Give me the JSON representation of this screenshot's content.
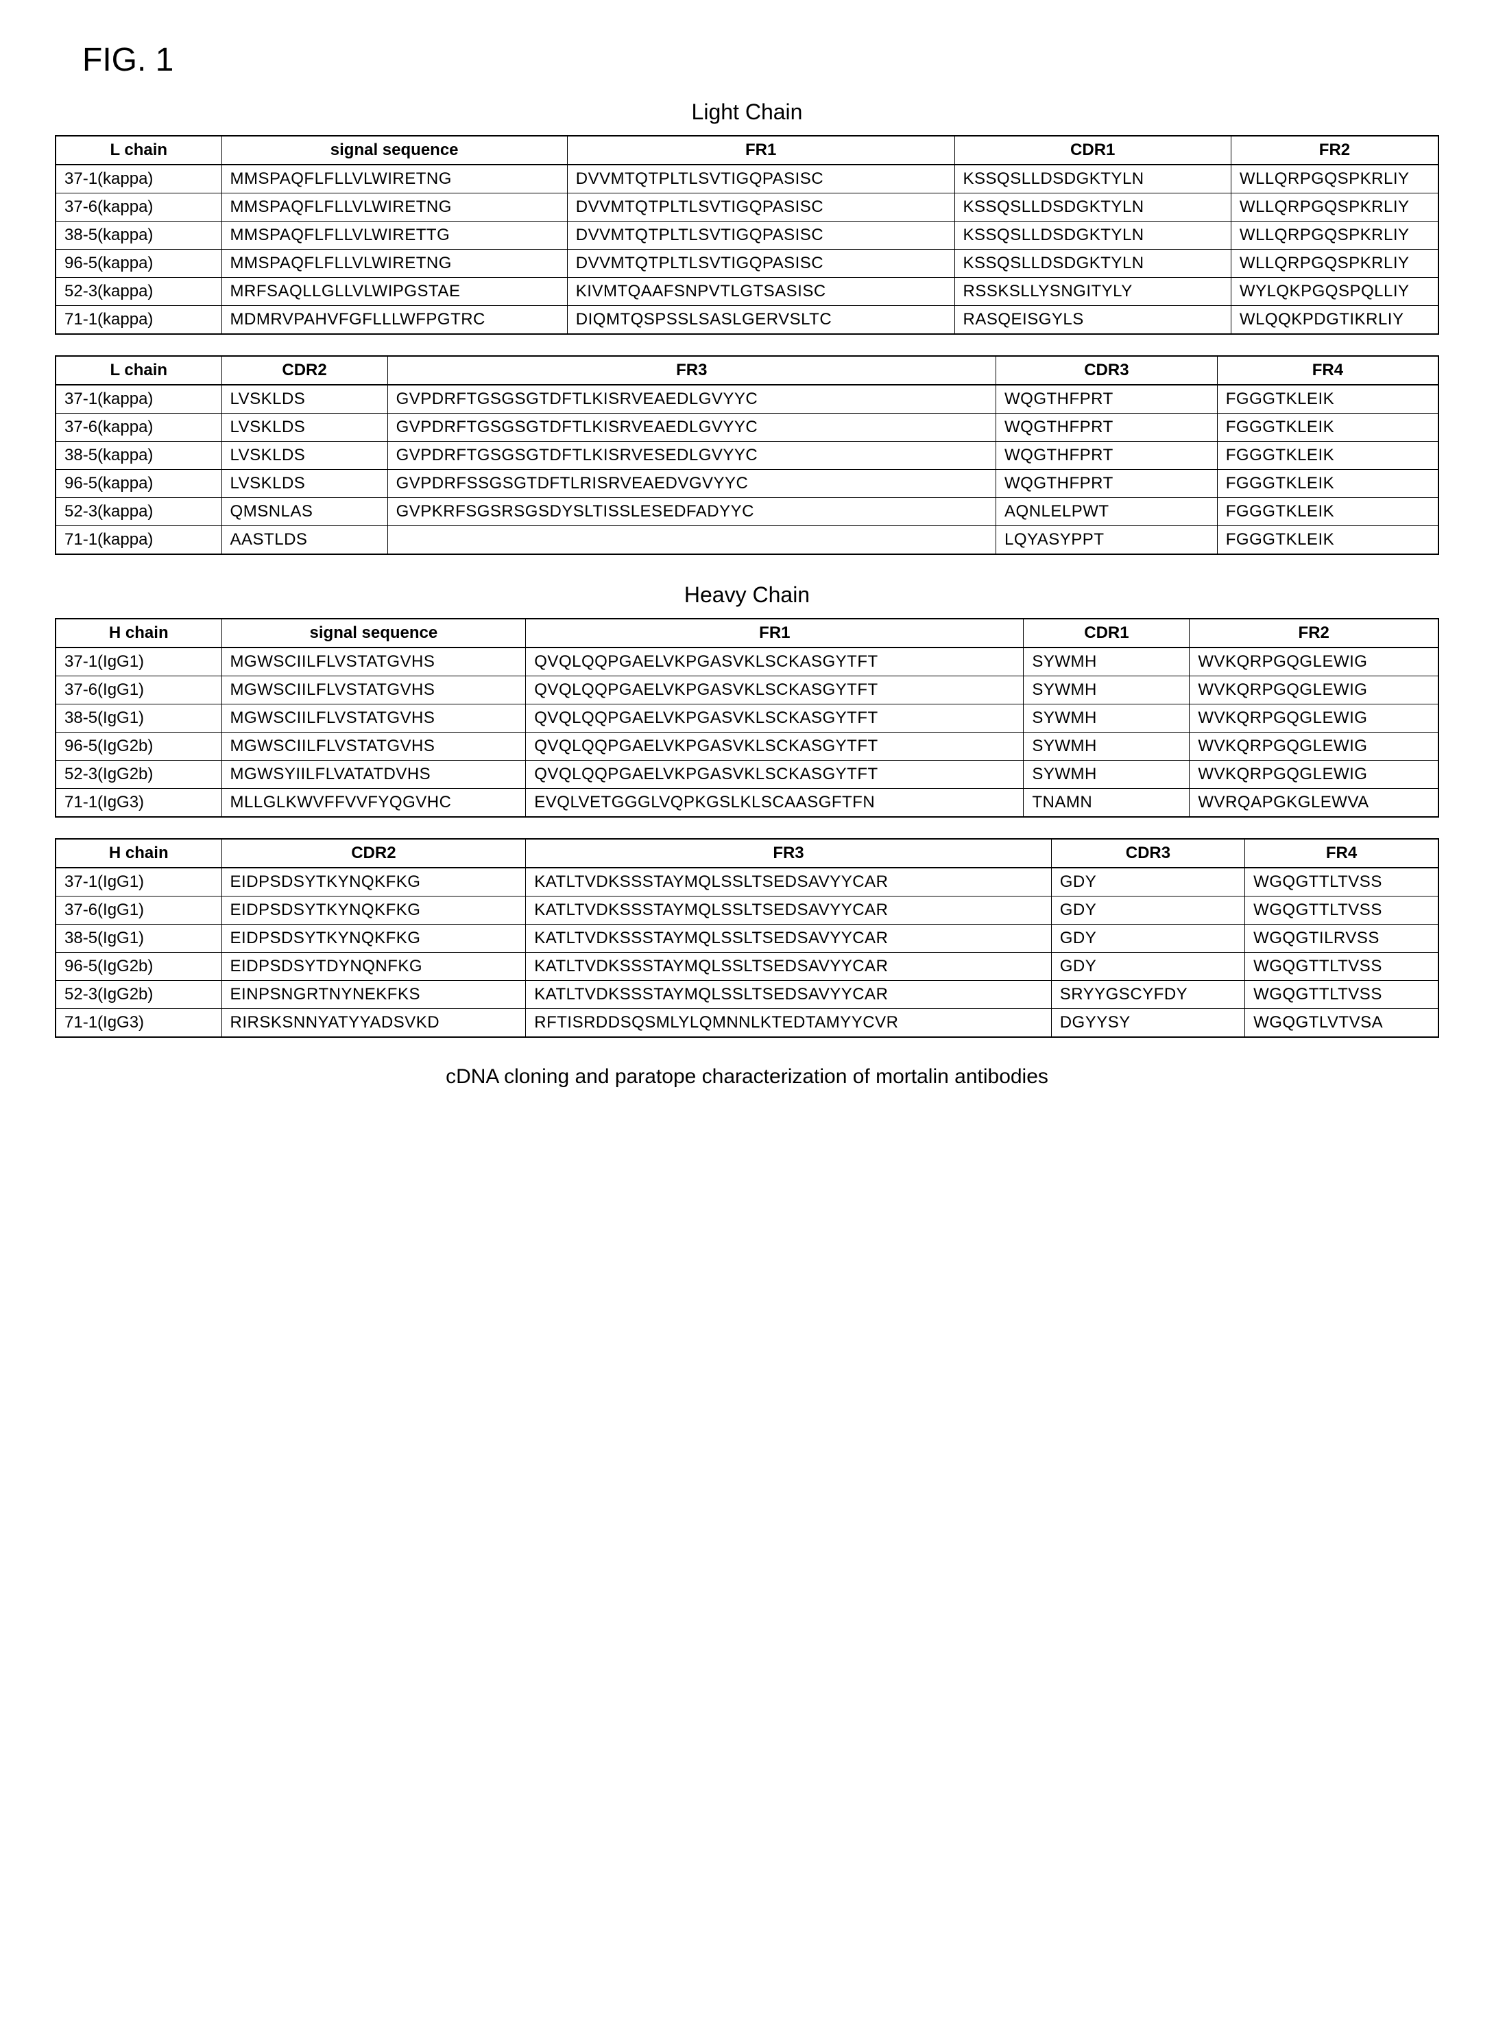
{
  "figure_label": "FIG. 1",
  "light_chain_title": "Light Chain",
  "heavy_chain_title": "Heavy Chain",
  "caption": "cDNA cloning and paratope characterization of mortalin antibodies",
  "light_table1": {
    "headers": [
      "L chain",
      "signal sequence",
      "FR1",
      "CDR1",
      "FR2"
    ],
    "rows": [
      [
        "37-1(kappa)",
        "MMSPAQFLFLLVLWIRETNG",
        "DVVMTQTPLTLSVTIGQPASISC",
        "KSSQSLLDSDGKTYLN",
        "WLLQRPGQSPKRLIY"
      ],
      [
        "37-6(kappa)",
        "MMSPAQFLFLLVLWIRETNG",
        "DVVMTQTPLTLSVTIGQPASISC",
        "KSSQSLLDSDGKTYLN",
        "WLLQRPGQSPKRLIY"
      ],
      [
        "38-5(kappa)",
        "MMSPAQFLFLLVLWIRETTG",
        "DVVMTQTPLTLSVTIGQPASISC",
        "KSSQSLLDSDGKTYLN",
        "WLLQRPGQSPKRLIY"
      ],
      [
        "96-5(kappa)",
        "MMSPAQFLFLLVLWIRETNG",
        "DVVMTQTPLTLSVTIGQPASISC",
        "KSSQSLLDSDGKTYLN",
        "WLLQRPGQSPKRLIY"
      ],
      [
        "52-3(kappa)",
        "MRFSAQLLGLLVLWIPGSTAE",
        "KIVMTQAAFSNPVTLGTSASISC",
        "RSSKSLLYSNGITYLY",
        "WYLQKPGQSPQLLIY"
      ],
      [
        "71-1(kappa)",
        "MDMRVPAHVFGFLLLWFPGTRC",
        "DIQMTQSPSSLSASLGERVSLTC",
        "RASQEISGYLS",
        "WLQQKPDGTIKRLIY"
      ]
    ]
  },
  "light_table2": {
    "headers": [
      "L chain",
      "CDR2",
      "FR3",
      "CDR3",
      "FR4"
    ],
    "rows": [
      [
        "37-1(kappa)",
        "LVSKLDS",
        "GVPDRFTGSGSGTDFTLKISRVEAEDLGVYYC",
        "WQGTHFPRT",
        "FGGGTKLEIK"
      ],
      [
        "37-6(kappa)",
        "LVSKLDS",
        "GVPDRFTGSGSGTDFTLKISRVEAEDLGVYYC",
        "WQGTHFPRT",
        "FGGGTKLEIK"
      ],
      [
        "38-5(kappa)",
        "LVSKLDS",
        "GVPDRFTGSGSGTDFTLKISRVESEDLGVYYC",
        "WQGTHFPRT",
        "FGGGTKLEIK"
      ],
      [
        "96-5(kappa)",
        "LVSKLDS",
        "GVPDRFSSGSGTDFTLRISRVEAEDVGVYYC",
        "WQGTHFPRT",
        "FGGGTKLEIK"
      ],
      [
        "52-3(kappa)",
        "QMSNLAS",
        "GVPKRFSGSRSGSDYSLTISSLESEDFADYYC",
        "AQNLELPWT",
        "FGGGTKLEIK"
      ],
      [
        "71-1(kappa)",
        "AASTLDS",
        "",
        "LQYASYPPT",
        "FGGGTKLEIK"
      ]
    ]
  },
  "heavy_table1": {
    "headers": [
      "H chain",
      "signal sequence",
      "FR1",
      "CDR1",
      "FR2"
    ],
    "rows": [
      [
        "37-1(IgG1)",
        "MGWSCIILFLVSTATGVHS",
        "QVQLQQPGAELVKPGASVKLSCKASGYTFT",
        "SYWMH",
        "WVKQRPGQGLEWIG"
      ],
      [
        "37-6(IgG1)",
        "MGWSCIILFLVSTATGVHS",
        "QVQLQQPGAELVKPGASVKLSCKASGYTFT",
        "SYWMH",
        "WVKQRPGQGLEWIG"
      ],
      [
        "38-5(IgG1)",
        "MGWSCIILFLVSTATGVHS",
        "QVQLQQPGAELVKPGASVKLSCKASGYTFT",
        "SYWMH",
        "WVKQRPGQGLEWIG"
      ],
      [
        "96-5(IgG2b)",
        "MGWSCIILFLVSTATGVHS",
        "QVQLQQPGAELVKPGASVKLSCKASGYTFT",
        "SYWMH",
        "WVKQRPGQGLEWIG"
      ],
      [
        "52-3(IgG2b)",
        "MGWSYIILFLVATATDVHS",
        "QVQLQQPGAELVKPGASVKLSCKASGYTFT",
        "SYWMH",
        "WVKQRPGQGLEWIG"
      ],
      [
        "71-1(IgG3)",
        "MLLGLKWVFFVVFYQGVHC",
        "EVQLVETGGGLVQPKGSLKLSCAASGFTFN",
        "TNAMN",
        "WVRQAPGKGLEWVA"
      ]
    ]
  },
  "heavy_table2": {
    "headers": [
      "H chain",
      "CDR2",
      "FR3",
      "CDR3",
      "FR4"
    ],
    "rows": [
      [
        "37-1(IgG1)",
        "EIDPSDSYTKYNQKFKG",
        "KATLTVDKSSSTAYMQLSSLTSEDSAVYYCAR",
        "GDY",
        "WGQGTTLTVSS"
      ],
      [
        "37-6(IgG1)",
        "EIDPSDSYTKYNQKFKG",
        "KATLTVDKSSSTAYMQLSSLTSEDSAVYYCAR",
        "GDY",
        "WGQGTTLTVSS"
      ],
      [
        "38-5(IgG1)",
        "EIDPSDSYTKYNQKFKG",
        "KATLTVDKSSSTAYMQLSSLTSEDSAVYYCAR",
        "GDY",
        "WGQGTILRVSS"
      ],
      [
        "96-5(IgG2b)",
        "EIDPSDSYTDYNQNFKG",
        "KATLTVDKSSSTAYMQLSSLTSEDSAVYYCAR",
        "GDY",
        "WGQGTTLTVSS"
      ],
      [
        "52-3(IgG2b)",
        "EINPSNGRTNYNEKFKS",
        "KATLTVDKSSSTAYMQLSSLTSEDSAVYYCAR",
        "SRYYGSCYFDY",
        "WGQGTTLTVSS"
      ],
      [
        "71-1(IgG3)",
        "RIRSKSNNYATYYADSVKD",
        "RFTISRDDSQSMLYLQMNNLKTEDTAMYYCVR",
        "DGYYSY",
        "WGQGTLVTVSA"
      ]
    ]
  },
  "col_widths": {
    "light1": [
      "12%",
      "25%",
      "28%",
      "20%",
      "15%"
    ],
    "light2": [
      "12%",
      "12%",
      "44%",
      "16%",
      "16%"
    ],
    "heavy1": [
      "12%",
      "22%",
      "36%",
      "12%",
      "18%"
    ],
    "heavy2": [
      "12%",
      "22%",
      "38%",
      "14%",
      "14%"
    ]
  }
}
